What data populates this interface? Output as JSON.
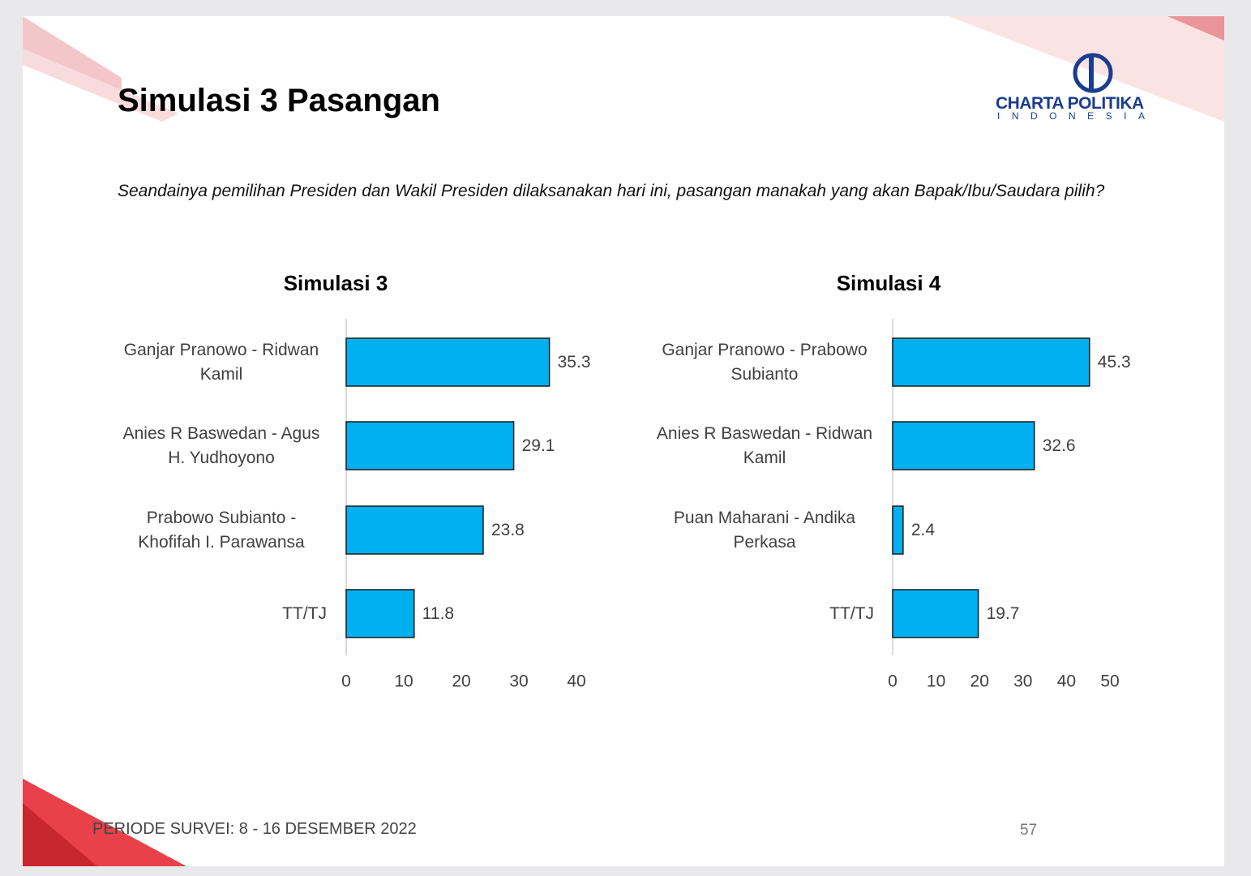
{
  "slide": {
    "title": "Simulasi 3 Pasangan",
    "question": "Seandainya pemilihan Presiden dan Wakil Presiden dilaksanakan hari ini, pasangan manakah yang akan Bapak/Ibu/Saudara pilih?",
    "period": "PERIODE SURVEI: 8 - 16 DESEMBER 2022",
    "page_number": 57,
    "logo": {
      "name": "CHARTA POLITIKA",
      "country": "INDONESIA"
    }
  },
  "chart_data": [
    {
      "type": "bar",
      "orientation": "horizontal",
      "title": "Simulasi 3",
      "categories": [
        "Ganjar Pranowo - Ridwan Kamil",
        "Anies R Baswedan - Agus H. Yudhoyono",
        "Prabowo Subianto - Khofifah I. Parawansa",
        "TT/TJ"
      ],
      "values": [
        35.3,
        29.1,
        23.8,
        11.8
      ],
      "color": "#00b0f0",
      "xlim": [
        0,
        40
      ],
      "xticks": [
        0,
        10,
        20,
        30,
        40
      ]
    },
    {
      "type": "bar",
      "orientation": "horizontal",
      "title": "Simulasi 4",
      "categories": [
        "Ganjar Pranowo - Prabowo Subianto",
        "Anies R Baswedan - Ridwan Kamil",
        "Puan Maharani - Andika Perkasa",
        "TT/TJ"
      ],
      "values": [
        45.3,
        32.6,
        2.4,
        19.7
      ],
      "color": "#00b0f0",
      "xlim": [
        0,
        50
      ],
      "xticks": [
        0,
        10,
        20,
        30,
        40,
        50
      ]
    }
  ]
}
